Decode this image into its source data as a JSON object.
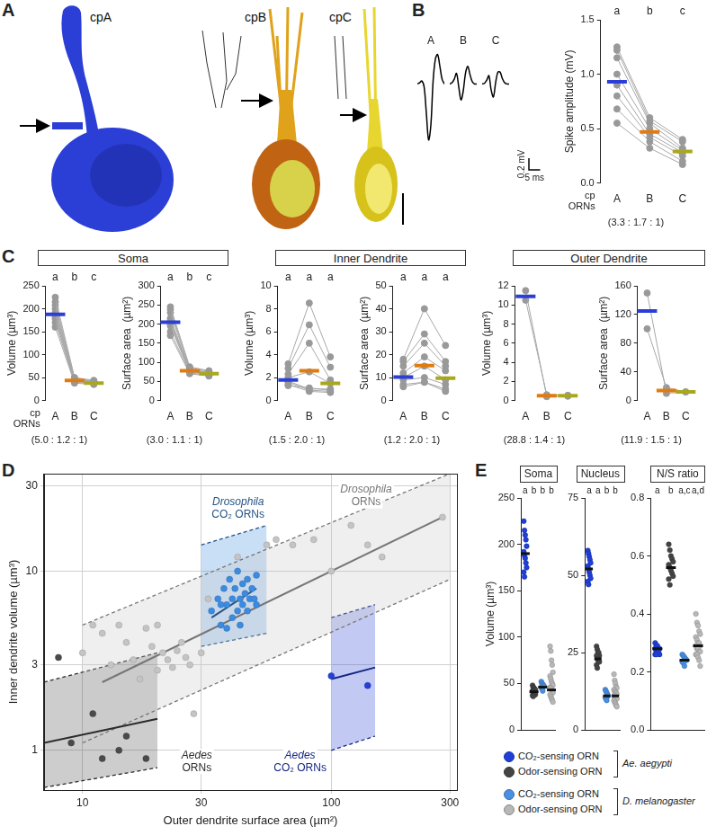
{
  "panel_letters": [
    "A",
    "B",
    "C",
    "D",
    "E"
  ],
  "panel_a": {
    "labels": [
      "cpA",
      "cpB",
      "cpC"
    ]
  },
  "panel_c_titles": [
    "Soma",
    "Inner Dendrite",
    "Outer Dendrite"
  ],
  "legend_e": [
    {
      "species": "Ae. aegypti",
      "entries": [
        {
          "name": "CO₂-sensing ORN",
          "color": "#1f3fd8"
        },
        {
          "name": "Odor-sensing ORN",
          "color": "#444444"
        }
      ]
    },
    {
      "species": "D. melanogaster",
      "entries": [
        {
          "name": "CO₂-sensing ORN",
          "color": "#4a90e2"
        },
        {
          "name": "Odor-sensing ORN",
          "color": "#b8b8b8"
        }
      ]
    }
  ],
  "chart_data": [
    {
      "type": "line",
      "tick_labels": false,
      "grid": false,
      "xlim": [
        0,
        12
      ],
      "ylim": [
        -1.0,
        0.6
      ],
      "series": [
        {
          "name": "A",
          "color": "#000000",
          "x": [
            0,
            1,
            2,
            3,
            4,
            5,
            6,
            7,
            8,
            9,
            10,
            11,
            12
          ],
          "values": [
            0,
            0.02,
            0.05,
            -0.05,
            -0.5,
            -0.95,
            -0.7,
            0.05,
            0.42,
            0.5,
            0.3,
            0.08,
            0
          ]
        },
        {
          "name": "B",
          "color": "#000000",
          "x": [
            0,
            1,
            2,
            3,
            4,
            5,
            6,
            7,
            8,
            9,
            10,
            11,
            12
          ],
          "values": [
            0,
            0.02,
            0.08,
            0.18,
            -0.05,
            -0.27,
            -0.12,
            0.18,
            0.3,
            0.16,
            0.04,
            0,
            0
          ]
        },
        {
          "name": "C",
          "color": "#000000",
          "x": [
            0,
            1,
            2,
            3,
            4,
            5,
            6,
            7,
            8,
            9,
            10,
            11,
            12
          ],
          "values": [
            0,
            0.01,
            0.06,
            0.14,
            -0.1,
            -0.22,
            0.02,
            0.2,
            0.2,
            0.09,
            0.02,
            0,
            0
          ]
        }
      ],
      "scale_bar": {
        "y": 0.2,
        "y_label": "0.2 mV",
        "x": 5,
        "x_label": "5 ms"
      }
    },
    {
      "type": "dot",
      "ylabel": "Spike amplitude (mV)",
      "xlabel": "cp ORNs",
      "annotations": [
        "(3.3 : 1.7 : 1)"
      ],
      "categories": [
        "A",
        "B",
        "C"
      ],
      "values": [
        0.93,
        0.47,
        0.29
      ],
      "colors": [
        "#2b3fd6",
        "#e07b12",
        "#a8a81e"
      ],
      "paired_points": [
        [
          1.25,
          0.6,
          0.4
        ],
        [
          1.22,
          0.57,
          0.38
        ],
        [
          1.15,
          0.55,
          0.32
        ],
        [
          1.0,
          0.5,
          0.3
        ],
        [
          0.9,
          0.45,
          0.28
        ],
        [
          0.8,
          0.42,
          0.25
        ],
        [
          0.68,
          0.38,
          0.2
        ],
        [
          0.55,
          0.32,
          0.17
        ]
      ],
      "letters": [
        "a",
        "b",
        "c"
      ],
      "ylim": [
        0,
        1.5
      ],
      "yticks": [
        {
          "value": 0,
          "label": "0.0"
        },
        0.5,
        {
          "value": 1,
          "label": "1.0"
        },
        1.5
      ],
      "grid": false
    },
    {
      "type": "dot",
      "ylabel": "Volume (µm³)",
      "xlabel": "cp ORNs",
      "annotations": [
        "(5.0 : 1.2 : 1)"
      ],
      "categories": [
        "A",
        "B",
        "C"
      ],
      "values": [
        188,
        44,
        38
      ],
      "colors": [
        "#2b3fd6",
        "#e07b12",
        "#a8a81e"
      ],
      "paired_points": [
        [
          225,
          50,
          44
        ],
        [
          215,
          48,
          43
        ],
        [
          208,
          46,
          42
        ],
        [
          200,
          45,
          41
        ],
        [
          192,
          44,
          40
        ],
        [
          188,
          44,
          39
        ],
        [
          182,
          43,
          38
        ],
        [
          178,
          42,
          37
        ],
        [
          170,
          40,
          36
        ],
        [
          160,
          38,
          35
        ]
      ],
      "letters": [
        "a",
        "b",
        "c"
      ],
      "ylim": [
        0,
        250
      ],
      "yticks": [
        0,
        50,
        100,
        150,
        200,
        250
      ],
      "grid": false
    },
    {
      "type": "dot",
      "ylabel": "Surface area  (µm²)",
      "annotations": [
        "(3.0 : 1.1 : 1)"
      ],
      "categories": [
        "A",
        "B",
        "C"
      ],
      "values": [
        205,
        78,
        70
      ],
      "colors": [
        "#2b3fd6",
        "#e07b12",
        "#a8a81e"
      ],
      "paired_points": [
        [
          245,
          88,
          78
        ],
        [
          238,
          85,
          76
        ],
        [
          230,
          82,
          74
        ],
        [
          215,
          80,
          72
        ],
        [
          210,
          78,
          70
        ],
        [
          205,
          77,
          70
        ],
        [
          200,
          76,
          68
        ],
        [
          195,
          75,
          67
        ],
        [
          180,
          72,
          66
        ],
        [
          170,
          70,
          64
        ]
      ],
      "letters": [
        "a",
        "b",
        "c"
      ],
      "ylim": [
        0,
        300
      ],
      "yticks": [
        0,
        50,
        100,
        150,
        200,
        250,
        300
      ],
      "grid": false
    },
    {
      "type": "dot",
      "ylabel": "Volume (µm³)",
      "annotations": [
        "(1.5 : 2.0 : 1)"
      ],
      "categories": [
        "A",
        "B",
        "C"
      ],
      "values": [
        1.8,
        2.6,
        1.5
      ],
      "colors": [
        "#2b3fd6",
        "#e07b12",
        "#a8a81e"
      ],
      "paired_points": [
        [
          3.2,
          8.5,
          3.8
        ],
        [
          2.8,
          6.6,
          2.9
        ],
        [
          2.3,
          5.0,
          1.8
        ],
        [
          2.0,
          2.5,
          1.5
        ],
        [
          1.7,
          1.0,
          1.0
        ],
        [
          1.6,
          0.9,
          0.8
        ],
        [
          1.4,
          0.8,
          0.7
        ],
        [
          1.3,
          1.1,
          0.9
        ]
      ],
      "letters": [
        "a",
        "a",
        "a"
      ],
      "ylim": [
        0,
        10
      ],
      "yticks": [
        0,
        2,
        4,
        6,
        8,
        10
      ],
      "grid": false
    },
    {
      "type": "dot",
      "ylabel": "Surface area  (µm²)",
      "annotations": [
        "(1.2 : 2.0 : 1)"
      ],
      "categories": [
        "A",
        "B",
        "C"
      ],
      "values": [
        10.2,
        15.2,
        9.7
      ],
      "colors": [
        "#2b3fd6",
        "#e07b12",
        "#a8a81e"
      ],
      "paired_points": [
        [
          18,
          40,
          24
        ],
        [
          17,
          29,
          17
        ],
        [
          15,
          25,
          15
        ],
        [
          12,
          19,
          13
        ],
        [
          10,
          15,
          9
        ],
        [
          9,
          10,
          7
        ],
        [
          7,
          8,
          5
        ],
        [
          6,
          8,
          4
        ]
      ],
      "letters": [
        "a",
        "a",
        "a"
      ],
      "ylim": [
        0,
        50
      ],
      "yticks": [
        0,
        10,
        20,
        30,
        40,
        50
      ],
      "grid": false
    },
    {
      "type": "dot",
      "ylabel": "Volume (µm³)",
      "annotations": [
        "(28.8 : 1.4 : 1)"
      ],
      "categories": [
        "A",
        "B",
        "C"
      ],
      "values": [
        10.9,
        0.5,
        0.5
      ],
      "colors": [
        "#2b3fd6",
        "#e07b12",
        "#a8a81e"
      ],
      "paired_points": [
        [
          11.5,
          0.4,
          0.45
        ],
        [
          10.5,
          0.6,
          0.55
        ]
      ],
      "ylim": [
        0,
        12
      ],
      "yticks": [
        0,
        2,
        4,
        6,
        8,
        10,
        12
      ],
      "grid": false
    },
    {
      "type": "dot",
      "ylabel": "Surface area  (µm²)",
      "annotations": [
        "(11.9 : 1.5 : 1)"
      ],
      "categories": [
        "A",
        "B",
        "C"
      ],
      "values": [
        125,
        14,
        12
      ],
      "colors": [
        "#2b3fd6",
        "#e07b12",
        "#a8a81e"
      ],
      "paired_points": [
        [
          150,
          10,
          12
        ],
        [
          100,
          18,
          12
        ]
      ],
      "ylim": [
        0,
        160
      ],
      "yticks": [
        0,
        40,
        80,
        120,
        160
      ],
      "grid": false
    },
    {
      "type": "scatter",
      "log": true,
      "grid": true,
      "xlabel": "Outer dendrite surface area (µm²)",
      "ylabel": "Inner dendrite volume (µm³)",
      "xlim": [
        7,
        320
      ],
      "ylim": [
        0.6,
        35
      ],
      "xticks": [
        10,
        30,
        100,
        300
      ],
      "yticks": [
        1,
        3,
        10,
        30
      ],
      "series": [
        {
          "name": "Drosophila ORNs",
          "color": "#c4c4c4",
          "x": [
            10,
            11,
            12,
            13,
            14,
            15,
            16,
            17,
            18,
            19,
            20,
            20,
            21,
            22,
            23,
            24,
            25,
            26,
            27,
            28,
            30,
            32,
            42,
            55,
            60,
            70,
            85,
            100,
            120,
            140,
            160,
            280
          ],
          "values": [
            3.5,
            5,
            4.5,
            3,
            5,
            4,
            3.2,
            2.5,
            4.8,
            3.8,
            2.8,
            5,
            3.5,
            3.2,
            2.9,
            3.6,
            4,
            3.3,
            3,
            1.6,
            3.5,
            7,
            12,
            14,
            15,
            14,
            15,
            10,
            18,
            14,
            12,
            20
          ],
          "fit": {
            "x": [
              12,
              280
            ],
            "values": [
              2.4,
              20
            ]
          },
          "band": {
            "x": [
              10,
              300
            ],
            "lower": [
              1.1,
              9
            ],
            "upper": [
              5,
              35
            ]
          }
        },
        {
          "name": "Drosophila CO₂ ORNs",
          "color": "#3c8be0",
          "x": [
            33,
            35,
            36,
            37,
            38,
            39,
            40,
            40,
            41,
            42,
            42,
            43,
            44,
            44,
            45,
            46,
            46,
            47,
            48,
            49,
            50,
            38,
            36,
            43,
            50
          ],
          "values": [
            6,
            7,
            5,
            8,
            6.5,
            9,
            7,
            5.5,
            8,
            6,
            10,
            7,
            6.5,
            8.5,
            7.5,
            6,
            9,
            7,
            8,
            7,
            6.5,
            4.8,
            6.5,
            5,
            9.5
          ],
          "fit": {
            "x": [
              33,
              50
            ],
            "values": [
              5.5,
              8
            ]
          },
          "band": {
            "x": [
              30,
              55
            ],
            "lower": [
              3.8,
              4.5
            ],
            "upper": [
              14,
              18
            ]
          }
        },
        {
          "name": "Aedes ORNs",
          "color": "#4a4a4a",
          "x": [
            8,
            9,
            11,
            12,
            14,
            15,
            18
          ],
          "values": [
            3.3,
            1.1,
            1.6,
            0.9,
            1.0,
            1.2,
            0.9
          ],
          "fit": {
            "x": [
              7,
              20
            ],
            "values": [
              1.1,
              1.5
            ]
          },
          "band": {
            "x": [
              7,
              20
            ],
            "lower": [
              0.62,
              0.8
            ],
            "upper": [
              2.4,
              3.5
            ]
          }
        },
        {
          "name": "Aedes CO₂ ORNs",
          "color": "#2440d8",
          "x": [
            100,
            140
          ],
          "values": [
            2.6,
            2.3
          ],
          "fit": {
            "x": [
              100,
              150
            ],
            "values": [
              2.5,
              2.9
            ]
          },
          "band": {
            "x": [
              100,
              150
            ],
            "lower": [
              1.0,
              1.2
            ],
            "upper": [
              5.5,
              6.5
            ]
          }
        }
      ]
    },
    {
      "type": "dot",
      "title": "Soma",
      "ylabel": "Volume (µm³)",
      "categories": [
        null,
        null,
        null,
        null
      ],
      "values": [
        190,
        41,
        46,
        43
      ],
      "colors": [
        "#1f3fd8",
        "#444444",
        "#4a90e2",
        "#b8b8b8"
      ],
      "points": [
        [
          225,
          215,
          210,
          205,
          198,
          192,
          188,
          185,
          180,
          175,
          170,
          165
        ],
        [
          48,
          46,
          45,
          44,
          43,
          42,
          41,
          40,
          39,
          38,
          37,
          36
        ],
        [
          52,
          50,
          49,
          48,
          47,
          46,
          44,
          42
        ],
        [
          90,
          85,
          75,
          70,
          62,
          58,
          55,
          52,
          50,
          48,
          46,
          45,
          44,
          42,
          40,
          38,
          36,
          34,
          32,
          30
        ]
      ],
      "letters": [
        "a",
        "b",
        "b",
        "b"
      ],
      "ylim": [
        0,
        250
      ],
      "yticks": [
        0,
        50,
        100,
        150,
        200,
        250
      ],
      "grid": false
    },
    {
      "type": "dot",
      "title": "Nucleus",
      "categories": [
        null,
        null,
        null,
        null
      ],
      "values": [
        52,
        23,
        11,
        11
      ],
      "colors": [
        "#1f3fd8",
        "#444444",
        "#4a90e2",
        "#b8b8b8"
      ],
      "points": [
        [
          58,
          57,
          56,
          55,
          54,
          53,
          52,
          51,
          50,
          49,
          48,
          47
        ],
        [
          27,
          26,
          25,
          25,
          24,
          24,
          23,
          23,
          22,
          22,
          21,
          20
        ],
        [
          13,
          12.5,
          12,
          11.5,
          11,
          10.5,
          10,
          9.5
        ],
        [
          18,
          16,
          15,
          14,
          13.5,
          13,
          12.5,
          12,
          12,
          11.5,
          11,
          11,
          10.5,
          10,
          10,
          9.5,
          9,
          8.5,
          8,
          7.5
        ]
      ],
      "letters": [
        "a",
        "a",
        "b",
        "b"
      ],
      "ylim": [
        0,
        75
      ],
      "yticks": [
        0,
        25,
        50,
        75
      ],
      "grid": false
    },
    {
      "type": "dot",
      "title": "N/S ratio",
      "categories": [
        null,
        null,
        null,
        null
      ],
      "values": [
        0.28,
        0.56,
        0.24,
        0.29
      ],
      "colors": [
        "#1f3fd8",
        "#444444",
        "#4a90e2",
        "#b8b8b8"
      ],
      "points": [
        [
          0.3,
          0.29,
          0.29,
          0.28,
          0.28,
          0.28,
          0.27,
          0.27,
          0.27,
          0.26,
          0.26,
          0.26
        ],
        [
          0.64,
          0.62,
          0.6,
          0.59,
          0.58,
          0.57,
          0.56,
          0.55,
          0.54,
          0.53,
          0.52,
          0.5
        ],
        [
          0.26,
          0.255,
          0.25,
          0.245,
          0.24,
          0.235,
          0.23,
          0.22
        ],
        [
          0.4,
          0.37,
          0.36,
          0.34,
          0.33,
          0.32,
          0.31,
          0.3,
          0.3,
          0.29,
          0.29,
          0.28,
          0.28,
          0.27,
          0.27,
          0.26,
          0.26,
          0.25,
          0.24,
          0.22
        ]
      ],
      "letters": [
        "a",
        "b",
        "a,c",
        "a,d"
      ],
      "ylim": [
        0,
        0.8
      ],
      "yticks": [
        {
          "value": 0,
          "label": "0.0"
        },
        0.2,
        0.4,
        0.6,
        0.8
      ],
      "grid": false
    }
  ]
}
